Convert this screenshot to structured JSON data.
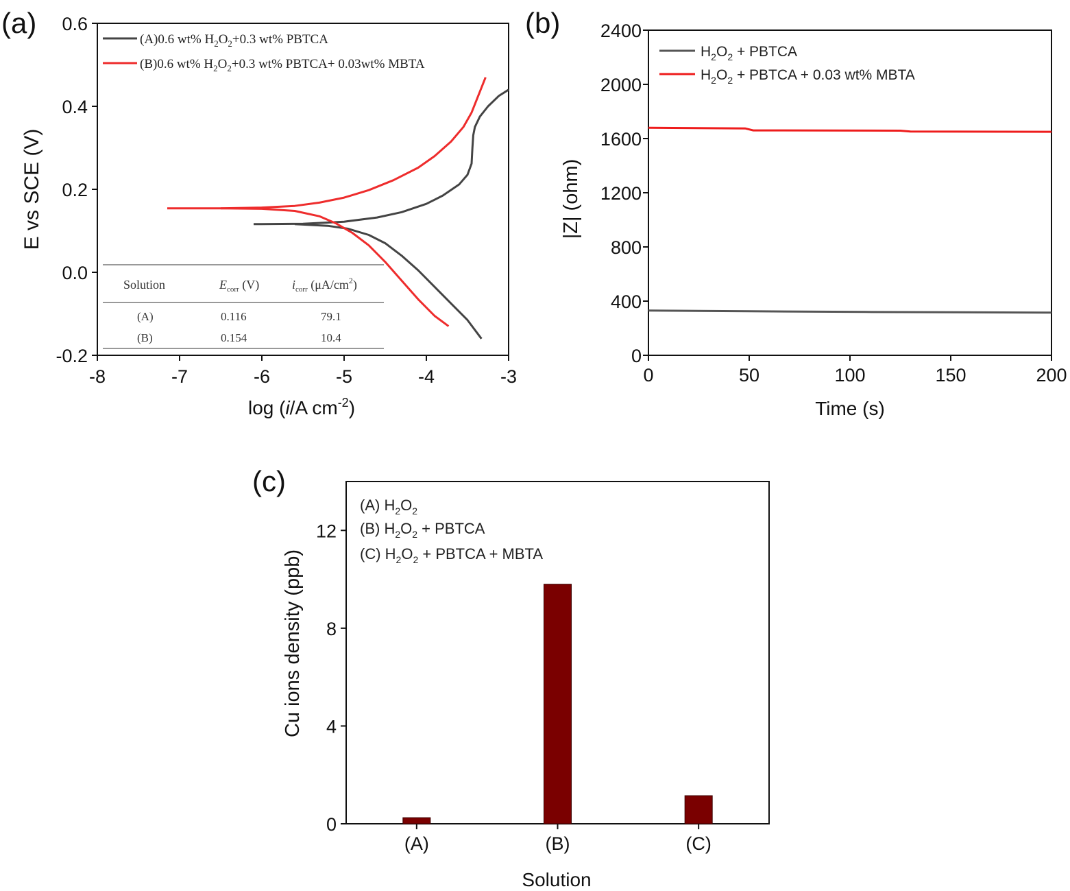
{
  "chart_data": [
    {
      "panel": "(a)",
      "type": "line",
      "xlabel_prefix": "log (",
      "xlabel_italic": "i",
      "xlabel_suffix": "/A cm",
      "xlabel_sup": "-2",
      "xlabel_close": ")",
      "ylabel": "E vs SCE (V)",
      "xlim": [
        -8,
        -3
      ],
      "ylim": [
        -0.2,
        0.6
      ],
      "xticks": [
        -8,
        -7,
        -6,
        -5,
        -4,
        -3
      ],
      "yticks": [
        -0.2,
        0.0,
        0.2,
        0.4,
        0.6
      ],
      "xtick_labels": [
        "-8",
        "-7",
        "-6",
        "-5",
        "-4",
        "-3"
      ],
      "ytick_labels": [
        "-0.2",
        "0.0",
        "0.2",
        "0.4",
        "0.6"
      ],
      "legend": [
        {
          "pre": "(A)0.6 wt% H",
          "s1": "2",
          "mid": "O",
          "s2": "2",
          "post": "+0.3 wt% PBTCA",
          "color": "#444444"
        },
        {
          "pre": "(B)0.6 wt% H",
          "s1": "2",
          "mid": "O",
          "s2": "2",
          "post": "+0.3 wt% PBTCA+ 0.03wt% MBTA",
          "color": "#ee2c2c"
        }
      ],
      "series": [
        {
          "color": "#444444",
          "anodic": [
            [
              -6.1,
              0.116
            ],
            [
              -5.5,
              0.117
            ],
            [
              -5.0,
              0.122
            ],
            [
              -4.6,
              0.132
            ],
            [
              -4.3,
              0.145
            ],
            [
              -4.0,
              0.165
            ],
            [
              -3.8,
              0.185
            ],
            [
              -3.6,
              0.212
            ],
            [
              -3.5,
              0.235
            ],
            [
              -3.45,
              0.262
            ],
            [
              -3.44,
              0.3
            ],
            [
              -3.43,
              0.33
            ],
            [
              -3.41,
              0.35
            ],
            [
              -3.35,
              0.375
            ],
            [
              -3.25,
              0.4
            ],
            [
              -3.12,
              0.425
            ],
            [
              -3.0,
              0.44
            ]
          ],
          "cathodic": [
            [
              -5.6,
              0.116
            ],
            [
              -5.2,
              0.112
            ],
            [
              -4.95,
              0.105
            ],
            [
              -4.7,
              0.09
            ],
            [
              -4.5,
              0.07
            ],
            [
              -4.3,
              0.04
            ],
            [
              -4.1,
              0.005
            ],
            [
              -3.9,
              -0.035
            ],
            [
              -3.7,
              -0.075
            ],
            [
              -3.5,
              -0.115
            ],
            [
              -3.33,
              -0.16
            ]
          ]
        },
        {
          "color": "#ee2c2c",
          "anodic": [
            [
              -7.15,
              0.154
            ],
            [
              -6.5,
              0.154
            ],
            [
              -6.0,
              0.156
            ],
            [
              -5.6,
              0.16
            ],
            [
              -5.3,
              0.168
            ],
            [
              -5.0,
              0.18
            ],
            [
              -4.7,
              0.198
            ],
            [
              -4.4,
              0.222
            ],
            [
              -4.1,
              0.252
            ],
            [
              -3.9,
              0.28
            ],
            [
              -3.7,
              0.315
            ],
            [
              -3.55,
              0.35
            ],
            [
              -3.45,
              0.385
            ],
            [
              -3.38,
              0.42
            ],
            [
              -3.33,
              0.445
            ],
            [
              -3.28,
              0.47
            ]
          ],
          "cathodic": [
            [
              -6.5,
              0.154
            ],
            [
              -6.0,
              0.153
            ],
            [
              -5.6,
              0.148
            ],
            [
              -5.3,
              0.135
            ],
            [
              -5.1,
              0.118
            ],
            [
              -4.9,
              0.095
            ],
            [
              -4.7,
              0.065
            ],
            [
              -4.5,
              0.025
            ],
            [
              -4.3,
              -0.02
            ],
            [
              -4.1,
              -0.065
            ],
            [
              -3.9,
              -0.105
            ],
            [
              -3.73,
              -0.13
            ]
          ]
        }
      ],
      "inset_table": {
        "headers": [
          "Solution",
          "E",
          "corr",
          " (V)",
          "i",
          "corr",
          " (μA/cm",
          "2",
          ")"
        ],
        "rows": [
          [
            "(A)",
            "0.116",
            "79.1"
          ],
          [
            "(B)",
            "0.154",
            "10.4"
          ]
        ]
      }
    },
    {
      "panel": "(b)",
      "type": "line",
      "xlabel": "Time (s)",
      "ylabel": "|Z| (ohm)",
      "xlim": [
        0,
        200
      ],
      "ylim": [
        0,
        2400
      ],
      "xticks": [
        0,
        50,
        100,
        150,
        200
      ],
      "yticks": [
        0,
        400,
        800,
        1200,
        1600,
        2000,
        2400
      ],
      "xtick_labels": [
        "0",
        "50",
        "100",
        "150",
        "200"
      ],
      "ytick_labels": [
        "0",
        "400",
        "800",
        "1200",
        "1600",
        "2000",
        "2400"
      ],
      "legend": [
        {
          "pre": "H",
          "s1": "2",
          "mid": "O",
          "s2": "2",
          "post": " + PBTCA",
          "color": "#555555"
        },
        {
          "pre": "H",
          "s1": "2",
          "mid": "O",
          "s2": "2",
          "post": " + PBTCA + 0.03 wt% MBTA",
          "color": "#ee1c1c"
        }
      ],
      "series": [
        {
          "color": "#555555",
          "points": [
            [
              0,
              330
            ],
            [
              50,
              325
            ],
            [
              108,
              320
            ],
            [
              200,
              315
            ]
          ]
        },
        {
          "color": "#ee1c1c",
          "points": [
            [
              0,
              1680
            ],
            [
              48,
              1675
            ],
            [
              52,
              1660
            ],
            [
              125,
              1658
            ],
            [
              130,
              1652
            ],
            [
              200,
              1650
            ]
          ]
        }
      ]
    },
    {
      "panel": "(c)",
      "type": "bar",
      "xlabel": "Solution",
      "ylabel": "Cu ions density (ppb)",
      "ylim": [
        0,
        14
      ],
      "yticks": [
        0,
        4,
        8,
        12
      ],
      "ytick_labels": [
        "0",
        "4",
        "8",
        "12"
      ],
      "categories": [
        "(A)",
        "(B)",
        "(C)"
      ],
      "values": [
        0.25,
        9.8,
        1.15
      ],
      "bar_color": "#7a0000",
      "legend": [
        {
          "pre": "(A) H",
          "s1": "2",
          "mid": "O",
          "s2": "2",
          "post": ""
        },
        {
          "pre": "(B) H",
          "s1": "2",
          "mid": "O",
          "s2": "2",
          "post": " + PBTCA"
        },
        {
          "pre": "(C) H",
          "s1": "2",
          "mid": "O",
          "s2": "2",
          "post": " + PBTCA + MBTA"
        }
      ]
    }
  ]
}
